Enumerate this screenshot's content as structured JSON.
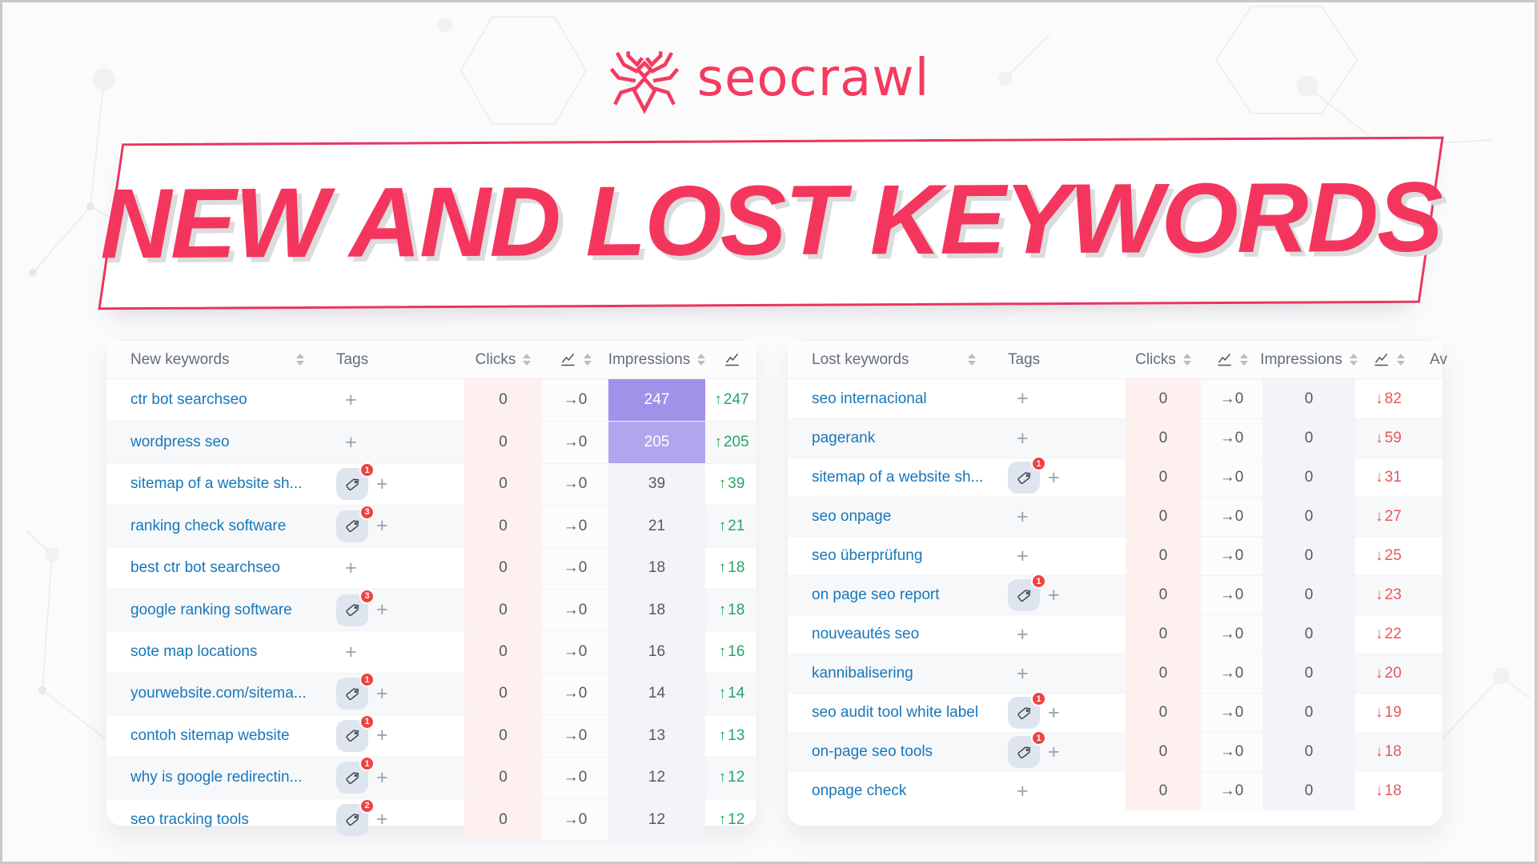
{
  "logo": {
    "brand": "seocrawl",
    "icon": "spider-logo-icon",
    "color": "#f43b5f"
  },
  "banner": {
    "title": "NEW AND LOST KEYWORDS",
    "text_color": "#f4365e",
    "border_color": "#e8365f"
  },
  "colors": {
    "keyword_link": "#1777bb",
    "up_green": "#26a562",
    "down_red": "#e8575a",
    "impressions_highlight_strong": "#a192e9",
    "impressions_highlight_soft": "#b2a5ee",
    "clicks_column_tint": "#fdf0ee",
    "impressions_column_tint": "#f4f3f9",
    "tag_badge": "#ef4240"
  },
  "tables": [
    {
      "id": "new",
      "change_direction": "up",
      "headers": [
        {
          "label": "New keywords",
          "sort": true
        },
        {
          "label": "Tags"
        },
        {
          "label": "Clicks",
          "sort": true
        },
        {
          "icon": "chart-line-icon",
          "sort": true
        },
        {
          "label": "Impressions",
          "sort": true
        },
        {
          "icon": "chart-line-icon"
        }
      ],
      "rows": [
        {
          "keyword": "ctr bot searchseo",
          "tags": 0,
          "clicks": "0",
          "clicks_trend": "→0",
          "impressions": "247",
          "hl": "strong",
          "change": "247"
        },
        {
          "keyword": "wordpress seo",
          "tags": 0,
          "clicks": "0",
          "clicks_trend": "→0",
          "impressions": "205",
          "hl": "soft",
          "change": "205"
        },
        {
          "keyword": "sitemap of a website sh...",
          "tags": 1,
          "clicks": "0",
          "clicks_trend": "→0",
          "impressions": "39",
          "hl": "",
          "change": "39"
        },
        {
          "keyword": "ranking check software",
          "tags": 3,
          "clicks": "0",
          "clicks_trend": "→0",
          "impressions": "21",
          "hl": "",
          "change": "21"
        },
        {
          "keyword": "best ctr bot searchseo",
          "tags": 0,
          "clicks": "0",
          "clicks_trend": "→0",
          "impressions": "18",
          "hl": "",
          "change": "18"
        },
        {
          "keyword": "google ranking software",
          "tags": 3,
          "clicks": "0",
          "clicks_trend": "→0",
          "impressions": "18",
          "hl": "",
          "change": "18"
        },
        {
          "keyword": "sote map locations",
          "tags": 0,
          "clicks": "0",
          "clicks_trend": "→0",
          "impressions": "16",
          "hl": "",
          "change": "16"
        },
        {
          "keyword": "yourwebsite.com/sitema...",
          "tags": 1,
          "clicks": "0",
          "clicks_trend": "→0",
          "impressions": "14",
          "hl": "",
          "change": "14"
        },
        {
          "keyword": "contoh sitemap website",
          "tags": 1,
          "clicks": "0",
          "clicks_trend": "→0",
          "impressions": "13",
          "hl": "",
          "change": "13"
        },
        {
          "keyword": "why is google redirectin...",
          "tags": 1,
          "clicks": "0",
          "clicks_trend": "→0",
          "impressions": "12",
          "hl": "",
          "change": "12"
        },
        {
          "keyword": "seo tracking tools",
          "tags": 2,
          "clicks": "0",
          "clicks_trend": "→0",
          "impressions": "12",
          "hl": "",
          "change": "12"
        }
      ]
    },
    {
      "id": "lost",
      "change_direction": "down",
      "headers": [
        {
          "label": "Lost keywords",
          "sort": true
        },
        {
          "label": "Tags"
        },
        {
          "label": "Clicks",
          "sort": true
        },
        {
          "icon": "chart-line-icon",
          "sort": true
        },
        {
          "label": "Impressions",
          "sort": true
        },
        {
          "icon": "chart-line-icon",
          "sort": true
        },
        {
          "label": "Av",
          "clipped": true
        }
      ],
      "rows": [
        {
          "keyword": "seo internacional",
          "tags": 0,
          "clicks": "0",
          "clicks_trend": "→0",
          "impressions": "0",
          "hl": "",
          "change": "82"
        },
        {
          "keyword": "pagerank",
          "tags": 0,
          "clicks": "0",
          "clicks_trend": "→0",
          "impressions": "0",
          "hl": "",
          "change": "59"
        },
        {
          "keyword": "sitemap of a website sh...",
          "tags": 1,
          "clicks": "0",
          "clicks_trend": "→0",
          "impressions": "0",
          "hl": "",
          "change": "31"
        },
        {
          "keyword": "seo onpage",
          "tags": 0,
          "clicks": "0",
          "clicks_trend": "→0",
          "impressions": "0",
          "hl": "",
          "change": "27"
        },
        {
          "keyword": "seo überprüfung",
          "tags": 0,
          "clicks": "0",
          "clicks_trend": "→0",
          "impressions": "0",
          "hl": "",
          "change": "25"
        },
        {
          "keyword": "on page seo report",
          "tags": 1,
          "clicks": "0",
          "clicks_trend": "→0",
          "impressions": "0",
          "hl": "",
          "change": "23"
        },
        {
          "keyword": "nouveautés seo",
          "tags": 0,
          "clicks": "0",
          "clicks_trend": "→0",
          "impressions": "0",
          "hl": "",
          "change": "22"
        },
        {
          "keyword": "kannibalisering",
          "tags": 0,
          "clicks": "0",
          "clicks_trend": "→0",
          "impressions": "0",
          "hl": "",
          "change": "20"
        },
        {
          "keyword": "seo audit tool white label",
          "tags": 1,
          "clicks": "0",
          "clicks_trend": "→0",
          "impressions": "0",
          "hl": "",
          "change": "19"
        },
        {
          "keyword": "on-page seo tools",
          "tags": 1,
          "clicks": "0",
          "clicks_trend": "→0",
          "impressions": "0",
          "hl": "",
          "change": "18"
        },
        {
          "keyword": "onpage check",
          "tags": 0,
          "clicks": "0",
          "clicks_trend": "→0",
          "impressions": "0",
          "hl": "",
          "change": "18"
        }
      ]
    }
  ]
}
